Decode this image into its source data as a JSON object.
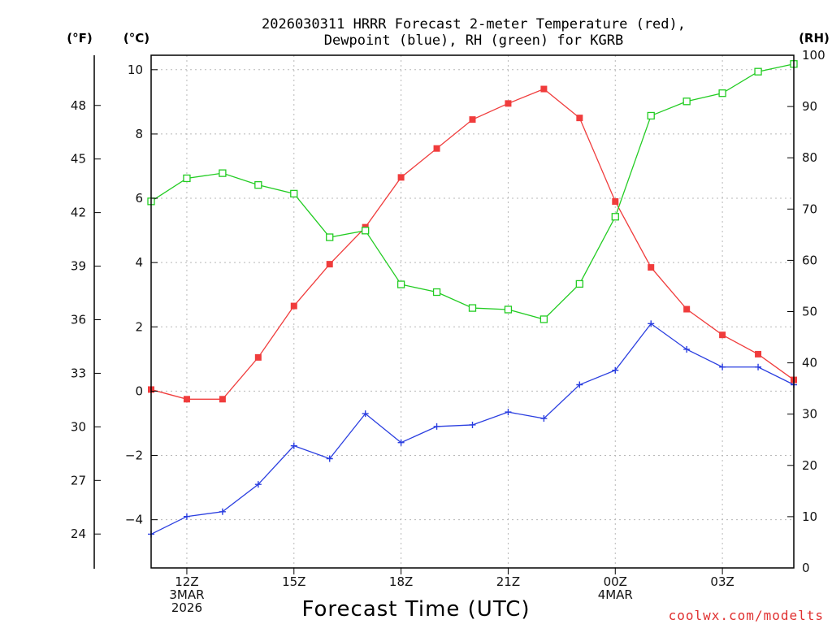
{
  "chart_data": {
    "type": "line",
    "title_line1": "2026030311 HRRR Forecast 2-meter Temperature (red),",
    "title_line2": "Dewpoint (blue), RH (green) for KGRB",
    "units": {
      "fahrenheit": "(°F)",
      "celsius": "(°C)",
      "rh": "(RH)"
    },
    "xlabel": "Forecast Time (UTC)",
    "credit": "coolwx.com/modelts",
    "hours": [
      11,
      12,
      13,
      14,
      15,
      16,
      17,
      18,
      19,
      20,
      21,
      22,
      23,
      24,
      25,
      26,
      27,
      28,
      29
    ],
    "xlim": [
      11,
      29
    ],
    "x_ticks": [
      {
        "hour": 12,
        "lines": [
          "12Z",
          "3MAR",
          "2026"
        ]
      },
      {
        "hour": 15,
        "lines": [
          "15Z"
        ]
      },
      {
        "hour": 18,
        "lines": [
          "18Z"
        ]
      },
      {
        "hour": 21,
        "lines": [
          "21Z"
        ]
      },
      {
        "hour": 24,
        "lines": [
          "00Z",
          "4MAR"
        ]
      },
      {
        "hour": 27,
        "lines": [
          "03Z"
        ]
      }
    ],
    "celsius_axis": {
      "range": [
        -5.5,
        10.45
      ],
      "ticks": [
        10,
        8,
        6,
        4,
        2,
        0,
        -2,
        -4
      ],
      "tick_labels": [
        "10",
        "8",
        "6",
        "4",
        "2",
        "0",
        "−2",
        "−4"
      ]
    },
    "fahrenheit_axis": {
      "ticks": [
        48,
        45,
        42,
        39,
        36,
        33,
        30,
        27,
        24
      ],
      "tick_labels": [
        "48",
        "45",
        "42",
        "39",
        "36",
        "33",
        "30",
        "27",
        "24"
      ]
    },
    "rh_axis": {
      "range": [
        0,
        100
      ],
      "ticks": [
        100,
        90,
        80,
        70,
        60,
        50,
        40,
        30,
        20,
        10,
        0
      ],
      "tick_labels": [
        "100",
        "90",
        "80",
        "70",
        "60",
        "50",
        "40",
        "30",
        "20",
        "10",
        "0"
      ]
    },
    "series": [
      {
        "name": "Temperature",
        "axis": "celsius",
        "color": "#f03c3c",
        "marker": "filled-square",
        "values": [
          0.05,
          -0.25,
          -0.25,
          1.05,
          2.65,
          3.95,
          5.1,
          6.65,
          7.55,
          8.45,
          8.95,
          9.4,
          8.5,
          5.9,
          3.85,
          2.55,
          1.75,
          1.15,
          0.35
        ]
      },
      {
        "name": "Dewpoint",
        "axis": "celsius",
        "color": "#2a3ee0",
        "marker": "plus",
        "values": [
          -4.45,
          -3.9,
          -3.75,
          -2.9,
          -1.7,
          -2.1,
          -0.7,
          -1.6,
          -1.1,
          -1.05,
          -0.65,
          -0.85,
          0.2,
          0.65,
          2.1,
          1.3,
          0.75,
          0.75,
          0.2
        ]
      },
      {
        "name": "RH",
        "axis": "rh",
        "color": "#22cc22",
        "marker": "open-square",
        "values": [
          71.5,
          76,
          77,
          74.7,
          73,
          64.5,
          65.8,
          55.3,
          53.8,
          50.7,
          50.4,
          48.5,
          55.4,
          68.5,
          88.2,
          91,
          92.6,
          96.8,
          98.3
        ]
      }
    ]
  }
}
